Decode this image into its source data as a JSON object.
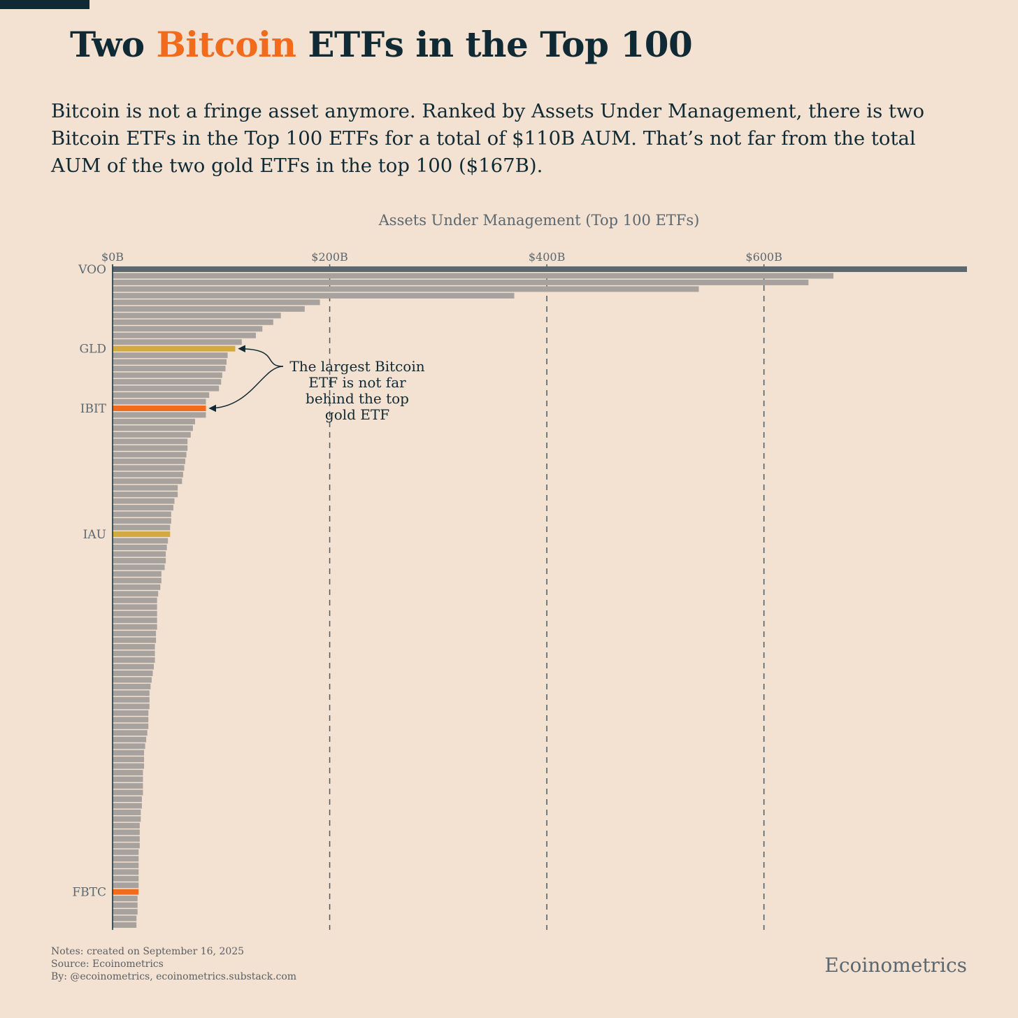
{
  "title": {
    "prefix": "Two ",
    "highlight": "Bitcoin",
    "suffix": " ETFs in the Top 100"
  },
  "subtitle": "Bitcoin is not a fringe asset anymore. Ranked by Assets Under Management, there is two Bitcoin ETFs in the Top 100 ETFs for a total of $110B AUM. That’s not far from the total AUM of the two gold ETFs in the top 100 ($167B).",
  "colors": {
    "background": "#f3e1d1",
    "title": "#0f2a35",
    "bitcoin": "#f26a1b",
    "gold": "#d2aa41",
    "default_bar": "#a7a29d",
    "top_bar": "#5b6870",
    "grid": "#4a5a63",
    "muted_text": "#5b6870"
  },
  "chart_data": {
    "type": "bar",
    "orientation": "horizontal",
    "title": "Assets Under Management (Top 100 ETFs)",
    "x_ticks": [
      {
        "value": 0,
        "label": "$0B"
      },
      {
        "value": 200,
        "label": "$200B"
      },
      {
        "value": 400,
        "label": "$400B"
      },
      {
        "value": 600,
        "label": "$600B"
      }
    ],
    "xlim": [
      0,
      787
    ],
    "grid": "vertical dashed",
    "units": "billions USD",
    "values": [
      787,
      664,
      641,
      540,
      370,
      191,
      177,
      155,
      148,
      138,
      132,
      119,
      113,
      106,
      105,
      104,
      101,
      100,
      98,
      89,
      86,
      86,
      86,
      76,
      74,
      72,
      69,
      69,
      68,
      67,
      66,
      65,
      64,
      60,
      60,
      57,
      56,
      54,
      54,
      53,
      53,
      51,
      50,
      49,
      49,
      48,
      45,
      45,
      44,
      42,
      41,
      41,
      41,
      41,
      41,
      40,
      40,
      39,
      39,
      39,
      38,
      37,
      36,
      35,
      34,
      34,
      34,
      33,
      33,
      33,
      32,
      31,
      30,
      29,
      29,
      29,
      28,
      28,
      28,
      28,
      27,
      27,
      26,
      26,
      25,
      25,
      25,
      25,
      24,
      24,
      24,
      24,
      24,
      24,
      24,
      23,
      23,
      23,
      22,
      22
    ],
    "highlights": [
      {
        "rank": 1,
        "label": "VOO",
        "kind": "top"
      },
      {
        "rank": 13,
        "label": "GLD",
        "kind": "gold"
      },
      {
        "rank": 22,
        "label": "IBIT",
        "kind": "bitcoin"
      },
      {
        "rank": 41,
        "label": "IAU",
        "kind": "gold"
      },
      {
        "rank": 95,
        "label": "FBTC",
        "kind": "bitcoin"
      }
    ],
    "annotation": {
      "lines": [
        "The largest Bitcoin",
        "ETF is not far",
        "behind the top",
        "gold ETF"
      ]
    }
  },
  "footer": {
    "notes": "Notes: created on September 16, 2025",
    "source": "Source: Ecoinometrics",
    "by": "By: @ecoinometrics, ecoinometrics.substack.com"
  },
  "brand": "Ecoinometrics"
}
